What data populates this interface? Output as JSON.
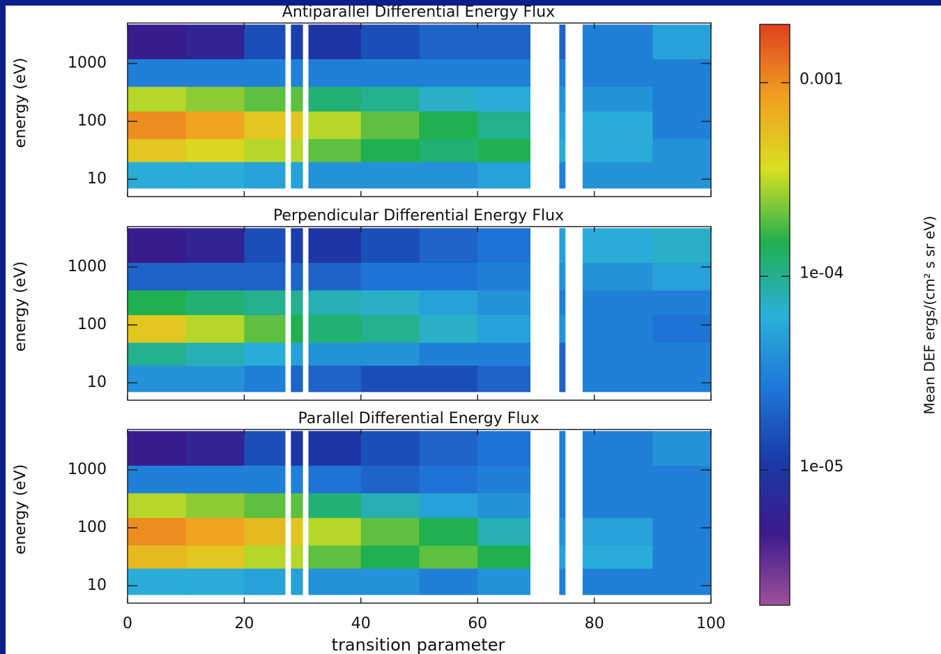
{
  "chart_data": {
    "type": "heatmap",
    "x_label": "transition parameter",
    "xlim": [
      0,
      100
    ],
    "xticks": [
      0,
      20,
      40,
      60,
      80,
      100
    ],
    "x_bins": [
      0,
      10,
      20,
      27,
      28,
      30,
      31,
      40,
      50,
      60,
      69,
      74,
      75,
      78,
      90,
      100
    ],
    "y_scale": "log",
    "ylim": [
      5,
      5000
    ],
    "yticks": [
      10,
      100,
      1000
    ],
    "y_bins": [
      7,
      20,
      50,
      150,
      400,
      1200,
      4700
    ],
    "panels": [
      {
        "title": "Antiparallel Differential Energy Flux",
        "y_label": "energy (eV)",
        "values": [
          [
            6e-05,
            6e-05,
            5e-05,
            null,
            5e-05,
            null,
            4e-05,
            4e-05,
            4e-05,
            5e-05,
            null,
            3e-05,
            null,
            4e-05,
            4e-05
          ],
          [
            0.0005,
            0.0004,
            0.0003,
            null,
            0.0003,
            null,
            0.0002,
            0.00015,
            0.00012,
            0.00015,
            null,
            6e-05,
            null,
            6e-05,
            4e-05
          ],
          [
            0.001,
            0.0008,
            0.0005,
            null,
            0.0005,
            null,
            0.0003,
            0.0002,
            0.00015,
            0.0001,
            null,
            5e-05,
            null,
            6e-05,
            3e-05
          ],
          [
            0.0003,
            0.00025,
            0.0002,
            null,
            0.0002,
            null,
            0.00012,
            0.0001,
            7e-05,
            6e-05,
            null,
            4e-05,
            null,
            4e-05,
            3e-05
          ],
          [
            3e-05,
            3e-05,
            3e-05,
            null,
            3e-05,
            null,
            3e-05,
            3e-05,
            3e-05,
            3e-05,
            null,
            3e-05,
            null,
            3e-05,
            3e-05
          ],
          [
            5e-06,
            6e-06,
            1.5e-05,
            null,
            1.2e-05,
            null,
            1e-05,
            1.5e-05,
            2e-05,
            2e-05,
            null,
            2e-05,
            null,
            3e-05,
            5e-05
          ]
        ]
      },
      {
        "title": "Perpendicular Differential Energy Flux",
        "y_label": "energy (eV)",
        "values": [
          [
            4e-05,
            4e-05,
            3e-05,
            null,
            2e-05,
            null,
            2e-05,
            1.5e-05,
            1.5e-05,
            2e-05,
            null,
            2e-05,
            null,
            3e-05,
            3e-05
          ],
          [
            0.0001,
            8e-05,
            6e-05,
            null,
            5e-05,
            null,
            4e-05,
            4e-05,
            3e-05,
            3e-05,
            null,
            2e-05,
            null,
            3e-05,
            3e-05
          ],
          [
            0.0005,
            0.0003,
            0.0002,
            null,
            0.00015,
            null,
            0.00012,
            0.0001,
            7e-05,
            5e-05,
            null,
            4e-05,
            null,
            3e-05,
            2.5e-05
          ],
          [
            0.00015,
            0.00012,
            0.0001,
            null,
            0.0001,
            null,
            8e-05,
            7e-05,
            5e-05,
            4e-05,
            null,
            3e-05,
            null,
            3e-05,
            3e-05
          ],
          [
            2e-05,
            2e-05,
            2e-05,
            null,
            2e-05,
            null,
            2e-05,
            2.5e-05,
            2.5e-05,
            3e-05,
            null,
            4e-05,
            null,
            4e-05,
            5e-05
          ],
          [
            5e-06,
            6e-06,
            1.5e-05,
            null,
            1.2e-05,
            null,
            1e-05,
            1.5e-05,
            2e-05,
            2.5e-05,
            null,
            5e-05,
            null,
            6e-05,
            7e-05
          ]
        ]
      },
      {
        "title": "Parallel Differential Energy Flux",
        "y_label": "energy (eV)",
        "values": [
          [
            6e-05,
            6e-05,
            5e-05,
            null,
            5e-05,
            null,
            4e-05,
            4e-05,
            3e-05,
            4e-05,
            null,
            3e-05,
            null,
            3e-05,
            3e-05
          ],
          [
            0.0006,
            0.0005,
            0.0003,
            null,
            0.0003,
            null,
            0.0002,
            0.00015,
            0.0002,
            0.00015,
            null,
            5e-05,
            null,
            6e-05,
            3e-05
          ],
          [
            0.001,
            0.0008,
            0.0006,
            null,
            0.0005,
            null,
            0.0003,
            0.0002,
            0.00015,
            8e-05,
            null,
            4e-05,
            null,
            5e-05,
            3e-05
          ],
          [
            0.0003,
            0.00025,
            0.0002,
            null,
            0.0002,
            null,
            0.00012,
            8e-05,
            5e-05,
            4e-05,
            null,
            3e-05,
            null,
            3e-05,
            3e-05
          ],
          [
            3e-05,
            3e-05,
            3e-05,
            null,
            3e-05,
            null,
            2.5e-05,
            2e-05,
            2.5e-05,
            3e-05,
            null,
            3e-05,
            null,
            3e-05,
            3e-05
          ],
          [
            5e-06,
            6e-06,
            1.5e-05,
            null,
            1e-05,
            null,
            1e-05,
            1.5e-05,
            2e-05,
            2.5e-05,
            null,
            3e-05,
            null,
            3e-05,
            4e-05
          ]
        ]
      }
    ],
    "colorbar": {
      "label": "Mean DEF ergs/(cm² s sr eV)",
      "scale": "log",
      "lim": [
        2e-06,
        0.002
      ],
      "ticks": [
        0.001,
        {
          "value": 0.0001,
          "label": "1e-04"
        },
        {
          "value": 1e-05,
          "label": "1e-05"
        }
      ],
      "colors": [
        "#a0509a",
        "#3a1a8c",
        "#1a3aa8",
        "#1e78d8",
        "#2ab0d8",
        "#20b050",
        "#d8e020",
        "#f0a020",
        "#e04020"
      ]
    }
  }
}
